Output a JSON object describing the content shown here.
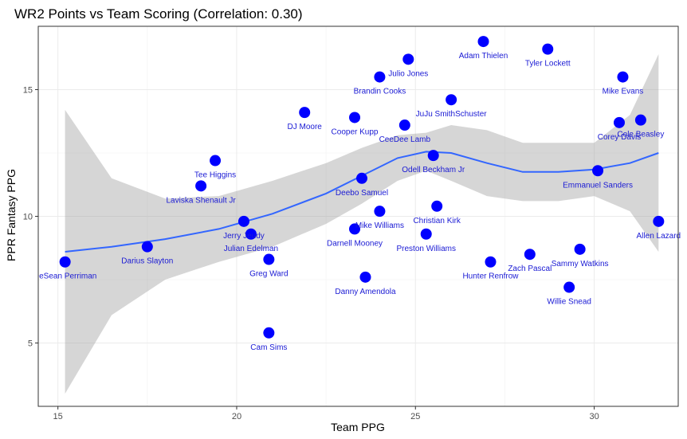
{
  "chart_data": {
    "type": "scatter",
    "title": "WR2 Points vs Team Scoring (Correlation: 0.30)",
    "xlabel": "Team PPG",
    "ylabel": "PPR Fantasy PPG",
    "xlim": [
      14.45,
      32.35
    ],
    "ylim": [
      2.5,
      17.5
    ],
    "xticks": [
      15,
      20,
      25,
      30
    ],
    "yticks": [
      5,
      10,
      15
    ],
    "grid": true,
    "points": [
      {
        "label": "DeSean Perriman",
        "x": 15.2,
        "y": 8.2
      },
      {
        "label": "Darius Slayton",
        "x": 17.5,
        "y": 8.8
      },
      {
        "label": "Laviska Shenault Jr",
        "x": 19.0,
        "y": 11.2
      },
      {
        "label": "Tee Higgins",
        "x": 19.4,
        "y": 12.2
      },
      {
        "label": "Jerry Jeudy",
        "x": 20.2,
        "y": 9.8
      },
      {
        "label": "Julian Edelman",
        "x": 20.4,
        "y": 9.3
      },
      {
        "label": "Greg Ward",
        "x": 20.9,
        "y": 8.3
      },
      {
        "label": "Cam Sims",
        "x": 20.9,
        "y": 5.4
      },
      {
        "label": "DJ Moore",
        "x": 21.9,
        "y": 14.1
      },
      {
        "label": "Cooper Kupp",
        "x": 23.3,
        "y": 13.9
      },
      {
        "label": "Darnell Mooney",
        "x": 23.3,
        "y": 9.5
      },
      {
        "label": "Deebo Samuel",
        "x": 23.5,
        "y": 11.5
      },
      {
        "label": "Danny Amendola",
        "x": 23.6,
        "y": 7.6
      },
      {
        "label": "Brandin Cooks",
        "x": 24.0,
        "y": 15.5
      },
      {
        "label": "Mike Williams",
        "x": 24.0,
        "y": 10.2
      },
      {
        "label": "Julio Jones",
        "x": 24.8,
        "y": 16.2
      },
      {
        "label": "CeeDee Lamb",
        "x": 24.7,
        "y": 13.6
      },
      {
        "label": "Preston Williams",
        "x": 25.3,
        "y": 9.3
      },
      {
        "label": "Odell Beckham Jr",
        "x": 25.5,
        "y": 12.4
      },
      {
        "label": "Christian Kirk",
        "x": 25.6,
        "y": 10.4
      },
      {
        "label": "JuJu SmithSchuster",
        "x": 26.0,
        "y": 14.6
      },
      {
        "label": "Adam Thielen",
        "x": 26.9,
        "y": 16.9
      },
      {
        "label": "Hunter Renfrow",
        "x": 27.1,
        "y": 8.2
      },
      {
        "label": "Zach Pascal",
        "x": 28.2,
        "y": 8.5
      },
      {
        "label": "Tyler Lockett",
        "x": 28.7,
        "y": 16.6
      },
      {
        "label": "Willie Snead",
        "x": 29.3,
        "y": 7.2
      },
      {
        "label": "Sammy Watkins",
        "x": 29.6,
        "y": 8.7
      },
      {
        "label": "Emmanuel Sanders",
        "x": 30.1,
        "y": 11.8
      },
      {
        "label": "Corey Davis",
        "x": 30.7,
        "y": 13.7
      },
      {
        "label": "Mike Evans",
        "x": 30.8,
        "y": 15.5
      },
      {
        "label": "Cole Beasley",
        "x": 31.3,
        "y": 13.8
      },
      {
        "label": "Allen Lazard",
        "x": 31.8,
        "y": 9.8
      }
    ],
    "smooth": {
      "x": [
        15.2,
        16.5,
        18.0,
        19.5,
        21.0,
        22.5,
        23.5,
        24.5,
        25.3,
        26.0,
        27.0,
        28.0,
        29.0,
        30.0,
        31.0,
        31.8
      ],
      "y": [
        8.6,
        8.8,
        9.1,
        9.5,
        10.1,
        10.9,
        11.6,
        12.3,
        12.55,
        12.5,
        12.1,
        11.75,
        11.75,
        11.85,
        12.1,
        12.5
      ],
      "lower": [
        3.0,
        6.1,
        7.5,
        8.2,
        8.8,
        9.7,
        10.5,
        11.4,
        11.8,
        11.4,
        10.8,
        10.6,
        10.6,
        10.8,
        10.2,
        8.6
      ],
      "upper": [
        14.2,
        11.5,
        10.7,
        10.8,
        11.4,
        12.1,
        12.7,
        13.2,
        13.3,
        13.6,
        13.4,
        12.9,
        12.9,
        12.9,
        14.0,
        16.4
      ]
    }
  }
}
